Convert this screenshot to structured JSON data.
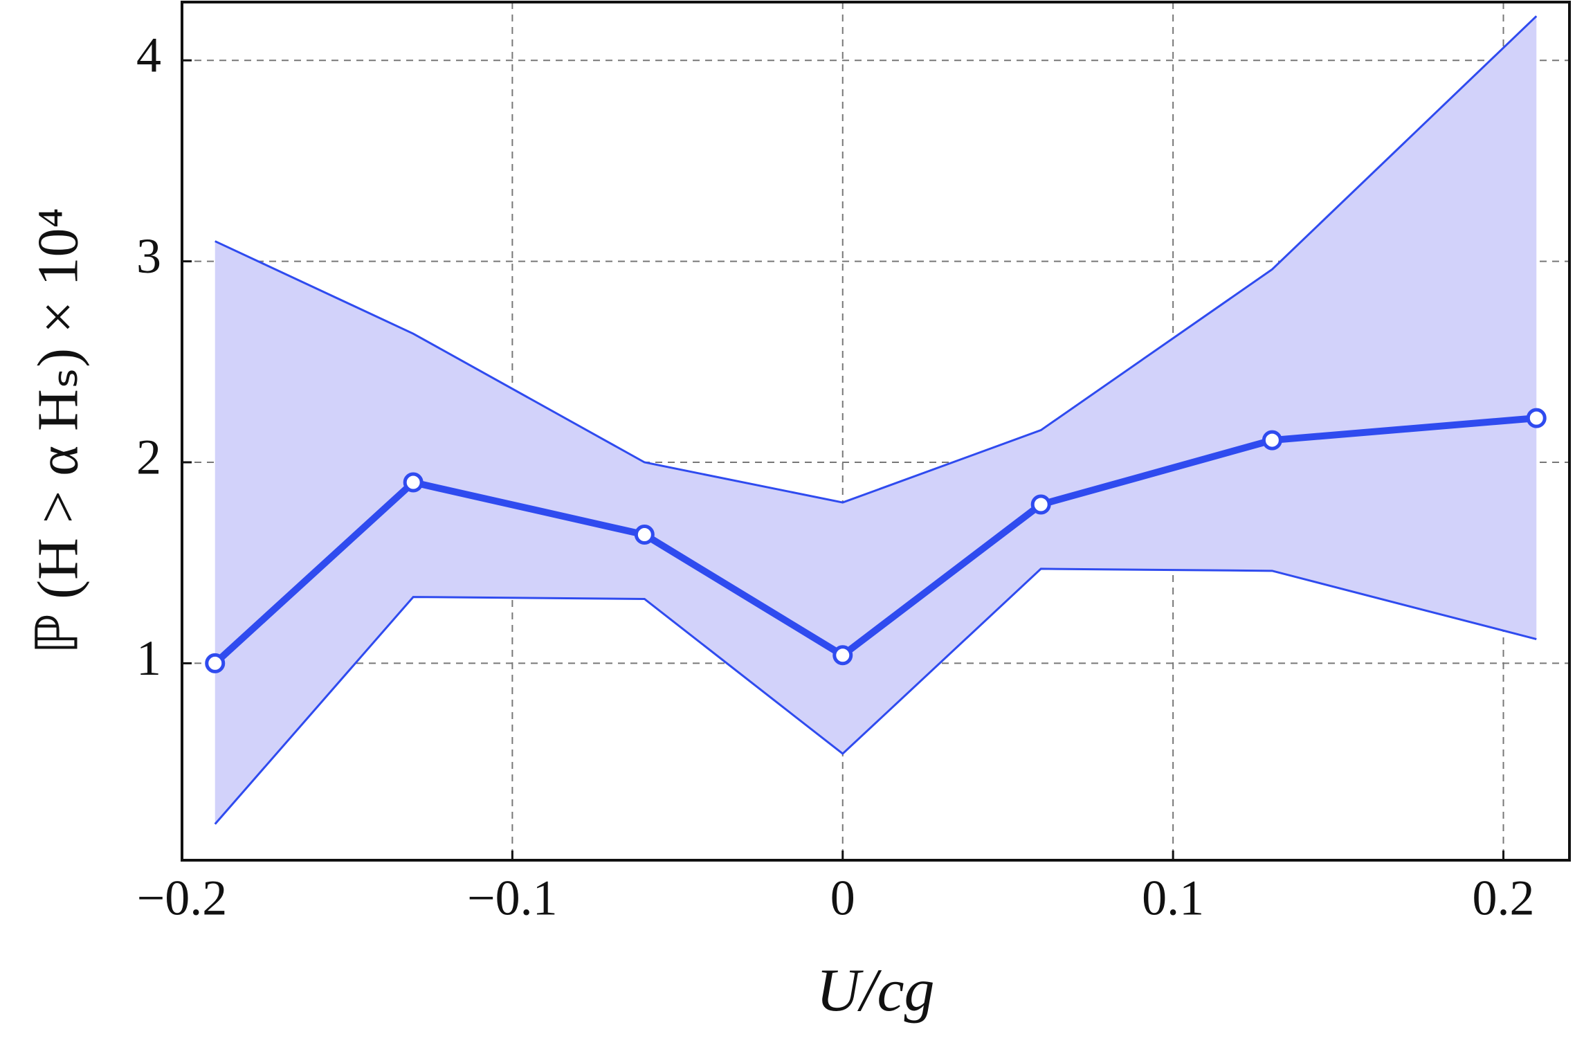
{
  "chart_data": {
    "type": "line",
    "x_label": "U/cg",
    "y_label": "ℙ (H > α Hₛ) × 10⁴",
    "x": [
      -0.19,
      -0.13,
      -0.06,
      0,
      0.06,
      0.13,
      0.21
    ],
    "series": [
      {
        "color": "#2f4bef",
        "values": [
          1.0,
          1.9,
          1.64,
          1.04,
          1.79,
          2.11,
          2.22
        ],
        "upper": [
          3.1,
          2.64,
          2.0,
          1.8,
          2.16,
          2.96,
          4.22
        ],
        "lower": [
          0.2,
          1.33,
          1.32,
          0.55,
          1.47,
          1.46,
          1.12
        ],
        "band_color": "#d2d2fa"
      }
    ],
    "xlim": [
      -0.2,
      0.22
    ],
    "ylim": [
      0.02,
      4.29
    ],
    "xticks": [
      {
        "value": -0.2,
        "label": "−0.2"
      },
      {
        "value": -0.1,
        "label": "−0.1"
      },
      0,
      0.1,
      0.2
    ],
    "yticks": [
      1,
      2,
      3,
      4
    ],
    "grid": true
  }
}
